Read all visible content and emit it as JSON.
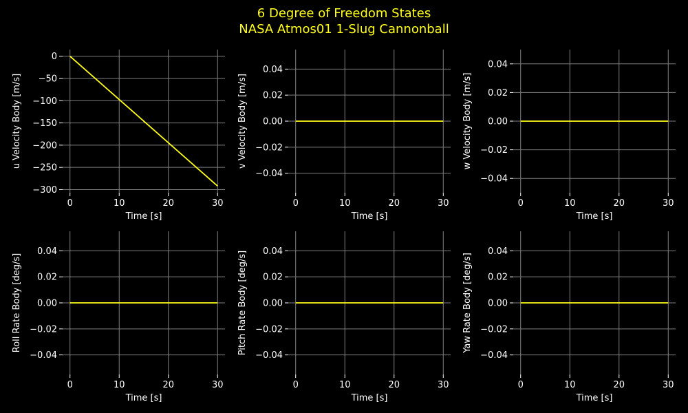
{
  "title_line1": "6 Degree of Freedom States",
  "title_line2": "NASA Atmos01 1-Slug Cannonball",
  "colors": {
    "background": "#000000",
    "line": "#ffff1a",
    "grid": "#808080",
    "text": "#ffffff",
    "title": "#ffff1a"
  },
  "chart_data": [
    {
      "type": "line",
      "xlabel": "Time [s]",
      "ylabel": "u Velocity Body [m/s]",
      "x": [
        0,
        30
      ],
      "y": [
        0,
        -292
      ],
      "xlim": [
        -1.5,
        31.5
      ],
      "ylim": [
        -307,
        15
      ],
      "xticks": [
        0,
        10,
        20,
        30
      ],
      "yticks": [
        0,
        -50,
        -100,
        -150,
        -200,
        -250,
        -300
      ],
      "yticklabels": [
        "0",
        "−50",
        "−100",
        "−150",
        "−200",
        "−250",
        "−300"
      ],
      "grid": true
    },
    {
      "type": "line",
      "xlabel": "Time [s]",
      "ylabel": "v Velocity Body [m/s]",
      "x": [
        0,
        30
      ],
      "y": [
        0,
        0
      ],
      "xlim": [
        -1.5,
        31.5
      ],
      "ylim": [
        -0.055,
        0.055
      ],
      "xticks": [
        0,
        10,
        20,
        30
      ],
      "yticks": [
        0.04,
        0.02,
        0.0,
        -0.02,
        -0.04
      ],
      "yticklabels": [
        "0.04",
        "0.02",
        "0.00",
        "−0.02",
        "−0.04"
      ],
      "grid": true
    },
    {
      "type": "line",
      "xlabel": "Time [s]",
      "ylabel": "w Velocity Body [m/s]",
      "x": [
        0,
        30
      ],
      "y": [
        0,
        0
      ],
      "xlim": [
        -1.5,
        31.5
      ],
      "ylim": [
        -0.05,
        0.05
      ],
      "xticks": [
        0,
        10,
        20,
        30
      ],
      "yticks": [
        0.04,
        0.02,
        0.0,
        -0.02,
        -0.04
      ],
      "yticklabels": [
        "0.04",
        "0.02",
        "0.00",
        "−0.02",
        "−0.04"
      ],
      "grid": true
    },
    {
      "type": "line",
      "xlabel": "Time [s]",
      "ylabel": "Roll Rate Body [deg/s]",
      "x": [
        0,
        30
      ],
      "y": [
        0,
        0
      ],
      "xlim": [
        -1.5,
        31.5
      ],
      "ylim": [
        -0.055,
        0.055
      ],
      "xticks": [
        0,
        10,
        20,
        30
      ],
      "yticks": [
        0.04,
        0.02,
        0.0,
        -0.02,
        -0.04
      ],
      "yticklabels": [
        "0.04",
        "0.02",
        "0.00",
        "−0.02",
        "−0.04"
      ],
      "grid": true
    },
    {
      "type": "line",
      "xlabel": "Time [s]",
      "ylabel": "Pitch Rate Body [deg/s]",
      "x": [
        0,
        30
      ],
      "y": [
        0,
        0
      ],
      "xlim": [
        -1.5,
        31.5
      ],
      "ylim": [
        -0.055,
        0.055
      ],
      "xticks": [
        0,
        10,
        20,
        30
      ],
      "yticks": [
        0.04,
        0.02,
        0.0,
        -0.02,
        -0.04
      ],
      "yticklabels": [
        "0.04",
        "0.02",
        "0.00",
        "−0.02",
        "−0.04"
      ],
      "grid": true
    },
    {
      "type": "line",
      "xlabel": "Time [s]",
      "ylabel": "Yaw Rate Body [deg/s]",
      "x": [
        0,
        30
      ],
      "y": [
        0,
        0
      ],
      "xlim": [
        -1.5,
        31.5
      ],
      "ylim": [
        -0.055,
        0.055
      ],
      "xticks": [
        0,
        10,
        20,
        30
      ],
      "yticks": [
        0.04,
        0.02,
        0.0,
        -0.02,
        -0.04
      ],
      "yticklabels": [
        "0.04",
        "0.02",
        "0.00",
        "−0.02",
        "−0.04"
      ],
      "grid": true
    }
  ]
}
